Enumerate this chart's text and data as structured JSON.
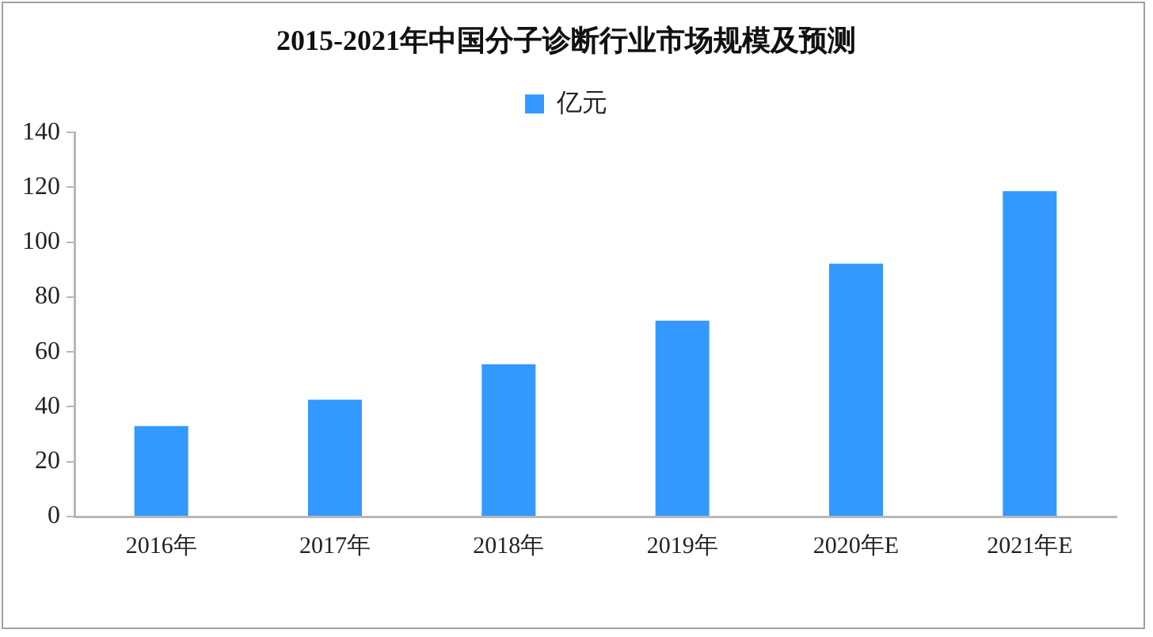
{
  "chart_data": {
    "type": "bar",
    "title": "2015-2021年中国分子诊断行业市场规模及预测",
    "categories": [
      "2016年",
      "2017年",
      "2018年",
      "2019年",
      "2020年E",
      "2021年E"
    ],
    "series": [
      {
        "name": "亿元",
        "color": "#3399ff",
        "values": [
          33,
          42.6,
          55.5,
          71.4,
          92.2,
          118.6
        ]
      }
    ],
    "ylim": [
      0,
      140
    ],
    "yticks": [
      0,
      20,
      40,
      60,
      80,
      100,
      120,
      140
    ],
    "legend": "top"
  }
}
